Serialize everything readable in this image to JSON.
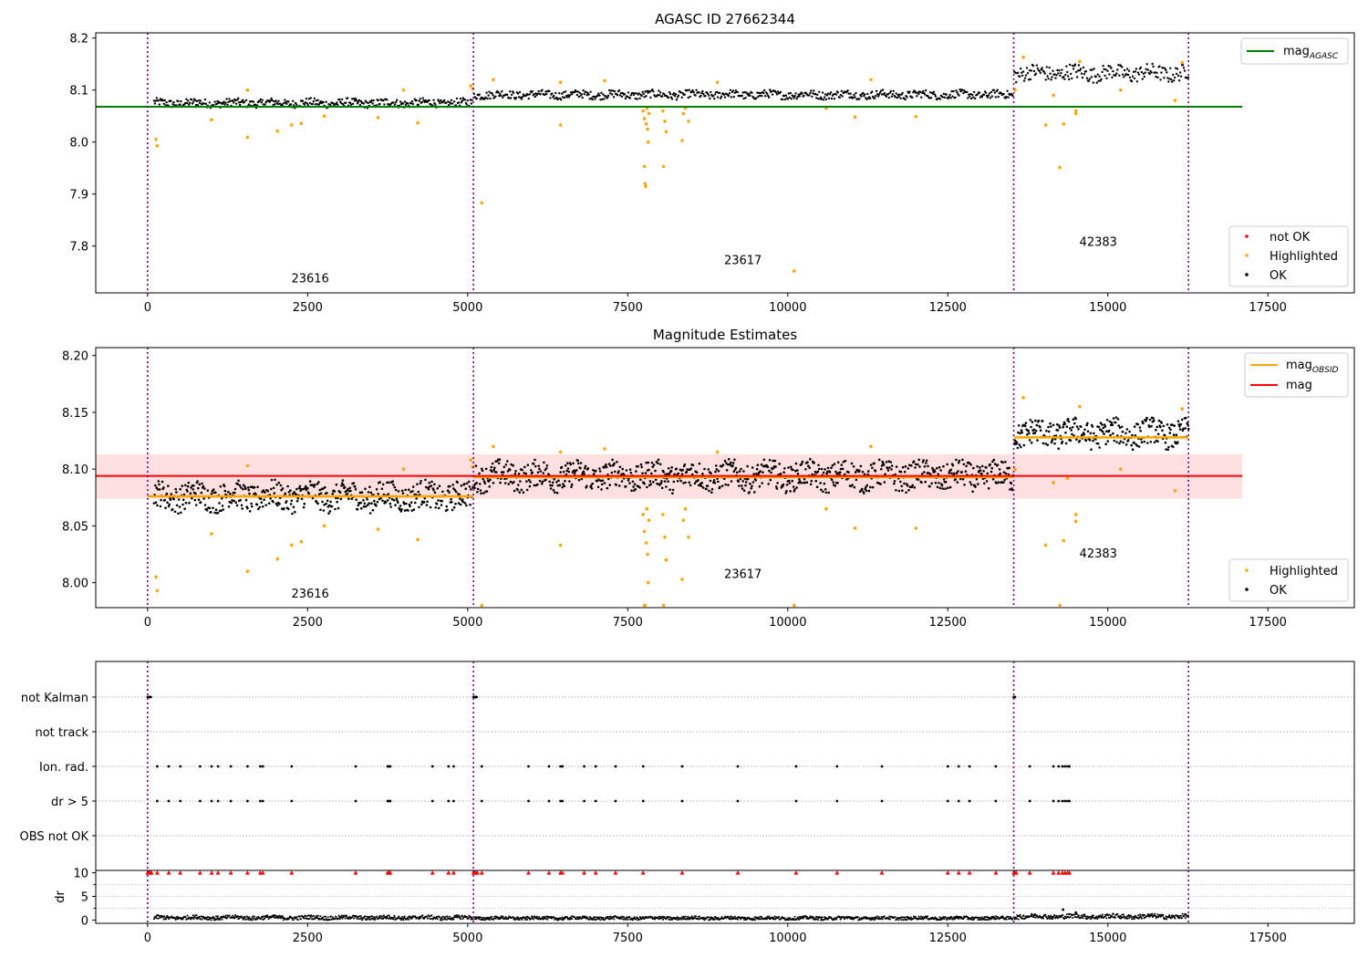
{
  "chart_data": [
    {
      "type": "scatter",
      "title": "AGASC ID 27662344",
      "xlabel": "",
      "ylabel": "",
      "xlim": [
        -810,
        18850
      ],
      "ylim": [
        7.71,
        8.21
      ],
      "xticks": [
        0,
        2500,
        5000,
        7500,
        10000,
        12500,
        15000,
        17500
      ],
      "yticks": [
        7.8,
        7.9,
        8.0,
        8.1,
        8.2
      ],
      "ytick_labels": [
        "7.8",
        "7.9",
        "8.0",
        "8.1",
        "8.2"
      ],
      "xtick_labels": [
        "0",
        "2500",
        "5000",
        "7500",
        "10000",
        "12500",
        "15000",
        "17500"
      ],
      "obs_boundaries": [
        0,
        5090,
        13530,
        16260
      ],
      "obsid_labels": [
        {
          "text": "23616",
          "x": 2540,
          "y": 7.73
        },
        {
          "text": "23617",
          "x": 9300,
          "y": 7.765
        },
        {
          "text": "42383",
          "x": 14850,
          "y": 7.8
        }
      ],
      "reference_lines": [
        {
          "name": "mag_AGASC",
          "value": 8.068,
          "x": [
            -810,
            17100
          ],
          "color": "#008000"
        }
      ],
      "legend_upper": [
        {
          "main": "mag",
          "sub": "AGASC",
          "color": "#008000"
        }
      ],
      "legend_lower": [
        {
          "label": "not OK",
          "color": "#ff0000"
        },
        {
          "label": "Highlighted",
          "color": "#ffa500"
        },
        {
          "label": "OK",
          "color": "#000000"
        }
      ],
      "ok_band": [
        {
          "x0": 100,
          "x1": 5080,
          "y0": 8.066,
          "y1": 8.084
        },
        {
          "x0": 5100,
          "x1": 13520,
          "y0": 8.082,
          "y1": 8.1
        },
        {
          "x0": 13540,
          "x1": 16260,
          "y0": 8.115,
          "y1": 8.15
        }
      ],
      "highlighted_points": [
        [
          130,
          8.005
        ],
        [
          150,
          7.993
        ],
        [
          1000,
          8.043
        ],
        [
          1560,
          8.009
        ],
        [
          1560,
          8.1
        ],
        [
          2030,
          8.021
        ],
        [
          2250,
          8.033
        ],
        [
          2400,
          8.036
        ],
        [
          2760,
          8.05
        ],
        [
          3600,
          8.047
        ],
        [
          4000,
          8.1
        ],
        [
          4220,
          8.037
        ],
        [
          5050,
          8.108
        ],
        [
          5080,
          8.102
        ],
        [
          5220,
          7.883
        ],
        [
          5400,
          8.12
        ],
        [
          6450,
          8.033
        ],
        [
          6450,
          8.115
        ],
        [
          7140,
          8.118
        ],
        [
          7740,
          8.06
        ],
        [
          7760,
          8.045
        ],
        [
          7760,
          7.953
        ],
        [
          7770,
          7.92
        ],
        [
          7780,
          7.915
        ],
        [
          7790,
          8.035
        ],
        [
          7800,
          8.065
        ],
        [
          7810,
          8.025
        ],
        [
          7820,
          8.0
        ],
        [
          7830,
          8.055
        ],
        [
          8050,
          8.06
        ],
        [
          8060,
          7.953
        ],
        [
          8080,
          8.04
        ],
        [
          8100,
          8.02
        ],
        [
          8350,
          8.003
        ],
        [
          8370,
          8.055
        ],
        [
          8400,
          8.065
        ],
        [
          8450,
          8.04
        ],
        [
          8900,
          8.115
        ],
        [
          10100,
          7.752
        ],
        [
          10600,
          8.065
        ],
        [
          11050,
          8.048
        ],
        [
          11300,
          8.12
        ],
        [
          12000,
          8.049
        ],
        [
          13550,
          8.1
        ],
        [
          13680,
          8.163
        ],
        [
          14030,
          8.033
        ],
        [
          14150,
          8.09
        ],
        [
          14250,
          7.951
        ],
        [
          14310,
          8.035
        ],
        [
          14500,
          8.06
        ],
        [
          14500,
          8.055
        ],
        [
          14560,
          8.155
        ],
        [
          15200,
          8.1
        ],
        [
          16050,
          8.08
        ],
        [
          16160,
          8.153
        ]
      ],
      "not_ok_points": []
    },
    {
      "type": "scatter",
      "title": "Magnitude Estimates",
      "xlabel": "",
      "ylabel": "",
      "xlim": [
        -810,
        18850
      ],
      "ylim": [
        7.978,
        8.207
      ],
      "xticks": [
        0,
        2500,
        5000,
        7500,
        10000,
        12500,
        15000,
        17500
      ],
      "yticks": [
        8.0,
        8.05,
        8.1,
        8.15,
        8.2
      ],
      "ytick_labels": [
        "8.00",
        "8.05",
        "8.10",
        "8.15",
        "8.20"
      ],
      "xtick_labels": [
        "0",
        "2500",
        "5000",
        "7500",
        "10000",
        "12500",
        "15000",
        "17500"
      ],
      "obs_boundaries": [
        0,
        5090,
        13530,
        16260
      ],
      "obsid_labels": [
        {
          "text": "23616",
          "x": 2540,
          "y": 7.987
        },
        {
          "text": "23617",
          "x": 9300,
          "y": 8.004
        },
        {
          "text": "42383",
          "x": 14850,
          "y": 8.022
        }
      ],
      "reference_lines": [
        {
          "name": "mag",
          "value": 8.094,
          "x": [
            -810,
            17100
          ],
          "color": "#ff0000"
        }
      ],
      "mag_band": {
        "low": 8.074,
        "high": 8.113,
        "x": [
          -810,
          17100
        ],
        "color": "#ffe0e0"
      },
      "obsid_mags": [
        {
          "x": [
            0,
            5090
          ],
          "value": 8.076
        },
        {
          "x": [
            5090,
            13530
          ],
          "value": 8.093
        },
        {
          "x": [
            13530,
            16260
          ],
          "value": 8.128
        }
      ],
      "legend_upper": [
        {
          "main": "mag",
          "sub": "OBSID",
          "color": "#ffa500"
        },
        {
          "main": "mag",
          "sub": "",
          "color": "#ff0000"
        }
      ],
      "legend_lower": [
        {
          "label": "Highlighted",
          "color": "#ffa500"
        },
        {
          "label": "OK",
          "color": "#000000"
        }
      ],
      "ok_band": [
        {
          "x0": 100,
          "x1": 5080,
          "y0": 8.062,
          "y1": 8.09
        },
        {
          "x0": 5100,
          "x1": 13520,
          "y0": 8.08,
          "y1": 8.108
        },
        {
          "x0": 13540,
          "x1": 16260,
          "y0": 8.118,
          "y1": 8.145
        }
      ],
      "highlighted_points": [
        [
          130,
          8.005
        ],
        [
          150,
          7.993
        ],
        [
          1000,
          8.043
        ],
        [
          1560,
          8.01
        ],
        [
          1560,
          8.103
        ],
        [
          2030,
          8.021
        ],
        [
          2250,
          8.033
        ],
        [
          2400,
          8.036
        ],
        [
          2760,
          8.05
        ],
        [
          3600,
          8.047
        ],
        [
          4000,
          8.1
        ],
        [
          4220,
          8.038
        ],
        [
          5050,
          8.108
        ],
        [
          5080,
          8.102
        ],
        [
          5220,
          7.98
        ],
        [
          5400,
          8.12
        ],
        [
          6450,
          8.033
        ],
        [
          6450,
          8.115
        ],
        [
          7140,
          8.118
        ],
        [
          7740,
          8.06
        ],
        [
          7760,
          8.045
        ],
        [
          7760,
          7.98
        ],
        [
          7770,
          7.98
        ],
        [
          7790,
          8.035
        ],
        [
          7800,
          8.065
        ],
        [
          7810,
          8.025
        ],
        [
          7820,
          8.0
        ],
        [
          7830,
          8.055
        ],
        [
          8050,
          8.06
        ],
        [
          8060,
          7.98
        ],
        [
          8080,
          8.04
        ],
        [
          8100,
          8.02
        ],
        [
          8350,
          8.003
        ],
        [
          8370,
          8.055
        ],
        [
          8400,
          8.065
        ],
        [
          8450,
          8.04
        ],
        [
          8900,
          8.115
        ],
        [
          10100,
          7.98
        ],
        [
          10600,
          8.065
        ],
        [
          11050,
          8.048
        ],
        [
          11300,
          8.12
        ],
        [
          12000,
          8.048
        ],
        [
          13550,
          8.1
        ],
        [
          13680,
          8.163
        ],
        [
          14030,
          8.033
        ],
        [
          14150,
          8.088
        ],
        [
          14250,
          7.98
        ],
        [
          14310,
          8.037
        ],
        [
          14370,
          8.092
        ],
        [
          14500,
          8.06
        ],
        [
          14500,
          8.054
        ],
        [
          14560,
          8.155
        ],
        [
          15200,
          8.1
        ],
        [
          16050,
          8.081
        ],
        [
          16160,
          8.153
        ]
      ]
    },
    {
      "type": "scatter",
      "title": "",
      "xlim": [
        -810,
        18850
      ],
      "xticks": [],
      "category_rows": [
        "not Kalman",
        "not track",
        "Ion. rad.",
        "dr > 5",
        "OBS not OK"
      ],
      "obs_boundaries": [
        0,
        5090,
        13530,
        16260
      ],
      "flag_points": {
        "not Kalman": [
          0,
          10,
          20,
          30,
          40,
          50,
          5090,
          5100,
          5110,
          5120,
          5130,
          5140,
          13530,
          13540,
          13550
        ],
        "not track": [],
        "Ion. rad.": [
          150,
          330,
          510,
          820,
          1000,
          1100,
          1300,
          1560,
          1760,
          1800,
          2250,
          3250,
          3750,
          3770,
          3790,
          4450,
          4700,
          4780,
          5220,
          5950,
          6270,
          6450,
          6480,
          6820,
          7000,
          7310,
          7740,
          8350,
          9220,
          10130,
          10770,
          11470,
          12500,
          12670,
          12840,
          13250,
          13780,
          14150,
          14230,
          14290,
          14330,
          14370,
          14400
        ],
        "dr > 5": [
          150,
          330,
          510,
          820,
          1000,
          1100,
          1300,
          1560,
          1760,
          1800,
          2250,
          3250,
          3750,
          3770,
          3790,
          4450,
          4700,
          4780,
          5220,
          5950,
          6270,
          6450,
          6480,
          6820,
          7000,
          7310,
          7740,
          8350,
          9220,
          10130,
          10770,
          11470,
          12500,
          12670,
          12840,
          13250,
          13780,
          14150,
          14230,
          14290,
          14330,
          14370,
          14400
        ],
        "OBS not OK": []
      }
    },
    {
      "type": "scatter",
      "title": "",
      "ylabel": "dr",
      "xlim": [
        -810,
        18850
      ],
      "ylim": [
        -0.7,
        10.5
      ],
      "xticks": [
        0,
        2500,
        5000,
        7500,
        10000,
        12500,
        15000,
        17500
      ],
      "xtick_labels": [
        "0",
        "2500",
        "5000",
        "7500",
        "10000",
        "12500",
        "15000",
        "17500"
      ],
      "yticks": [
        0,
        5,
        10
      ],
      "ytick_labels": [
        "0",
        "5",
        "10"
      ],
      "obs_boundaries": [
        0,
        5090,
        13530,
        16260
      ],
      "ok_band": [
        {
          "x0": 100,
          "x1": 5080,
          "y0": 0.0,
          "y1": 1.0
        },
        {
          "x0": 5100,
          "x1": 13520,
          "y0": 0.0,
          "y1": 0.8
        },
        {
          "x0": 13540,
          "x1": 16260,
          "y0": 0.2,
          "y1": 1.3
        }
      ],
      "clipped_points_at_10": [
        0,
        20,
        40,
        60,
        150,
        330,
        510,
        820,
        1000,
        1100,
        1300,
        1560,
        1760,
        1800,
        2250,
        3250,
        3750,
        3770,
        3790,
        4450,
        4700,
        4780,
        5090,
        5110,
        5130,
        5150,
        5220,
        5950,
        6270,
        6450,
        6480,
        6820,
        7000,
        7310,
        7740,
        8350,
        9220,
        10130,
        10770,
        11470,
        12500,
        12670,
        12840,
        13250,
        13530,
        13550,
        13570,
        13780,
        14150,
        14230,
        14290,
        14330,
        14370,
        14400
      ],
      "spikes": [
        [
          14300,
          2.2
        ],
        [
          14500,
          1.6
        ]
      ]
    }
  ]
}
